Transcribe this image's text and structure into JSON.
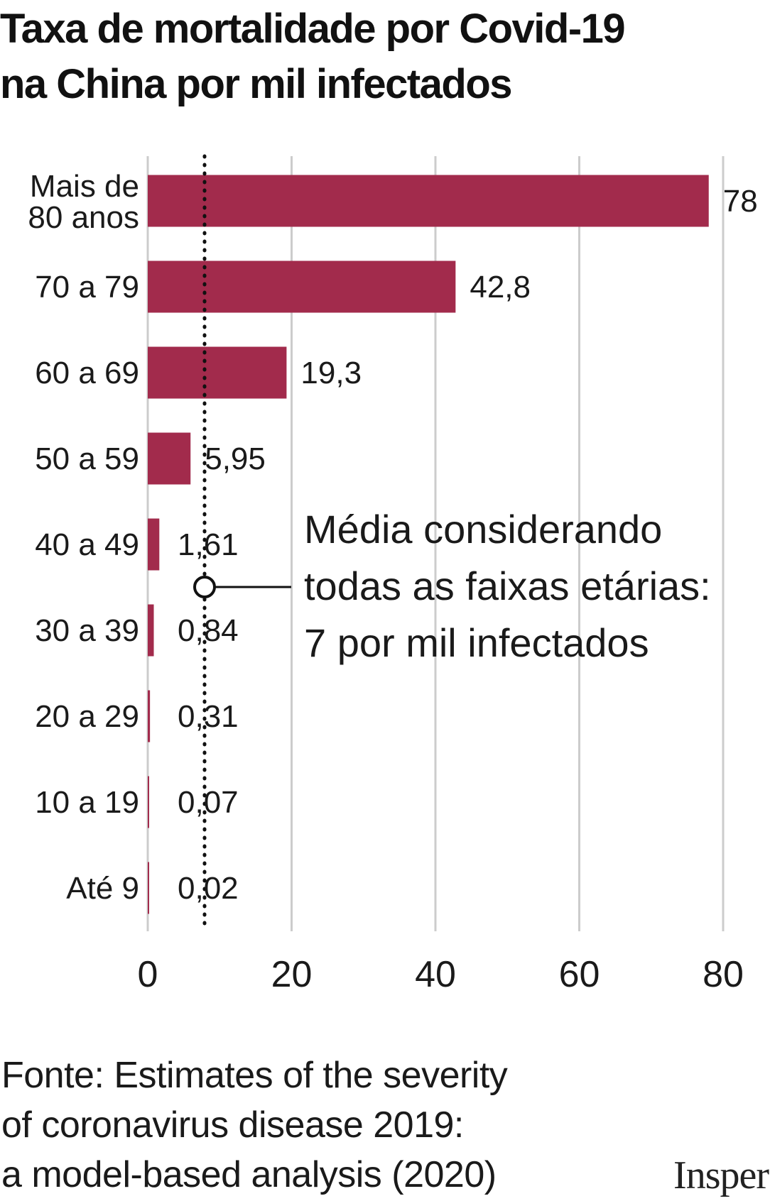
{
  "title": {
    "line1": "Taxa de mortalidade por Covid-19",
    "line2": "na China por mil infectados"
  },
  "chart_data": {
    "type": "bar",
    "orientation": "horizontal",
    "title": "Taxa de mortalidade por Covid-19 na China por mil infectados",
    "categories": [
      [
        "Mais de",
        "80 anos"
      ],
      [
        "70 a 79"
      ],
      [
        "60 a 69"
      ],
      [
        "50 a 59"
      ],
      [
        "40 a 49"
      ],
      [
        "30 a 39"
      ],
      [
        "20 a 29"
      ],
      [
        "10 a 19"
      ],
      [
        "Até 9"
      ]
    ],
    "values": [
      78,
      42.8,
      19.3,
      5.95,
      1.61,
      0.84,
      0.31,
      0.07,
      0.02
    ],
    "value_labels": [
      "78",
      "42,8",
      "19,3",
      "5,95",
      "1,61",
      "0,84",
      "0,31",
      "0,07",
      "0,02"
    ],
    "xlim": [
      0,
      80
    ],
    "xticks": [
      0,
      20,
      40,
      60,
      80
    ],
    "xtick_labels": [
      "0",
      "20",
      "40",
      "60",
      "80"
    ],
    "grid": true,
    "bar_color": "#a22b4c",
    "grid_color": "#cccccc",
    "reference_line": {
      "value": 7,
      "style": "dotted",
      "annotation": [
        "Média considerando",
        "todas as faixas etárias:",
        "7 por mil infectados"
      ]
    }
  },
  "source": {
    "line1": "Fonte: Estimates of the severity",
    "line2": "of coronavirus disease 2019:",
    "line3": "a model-based analysis (2020)"
  },
  "logo": {
    "text": "Insper"
  }
}
